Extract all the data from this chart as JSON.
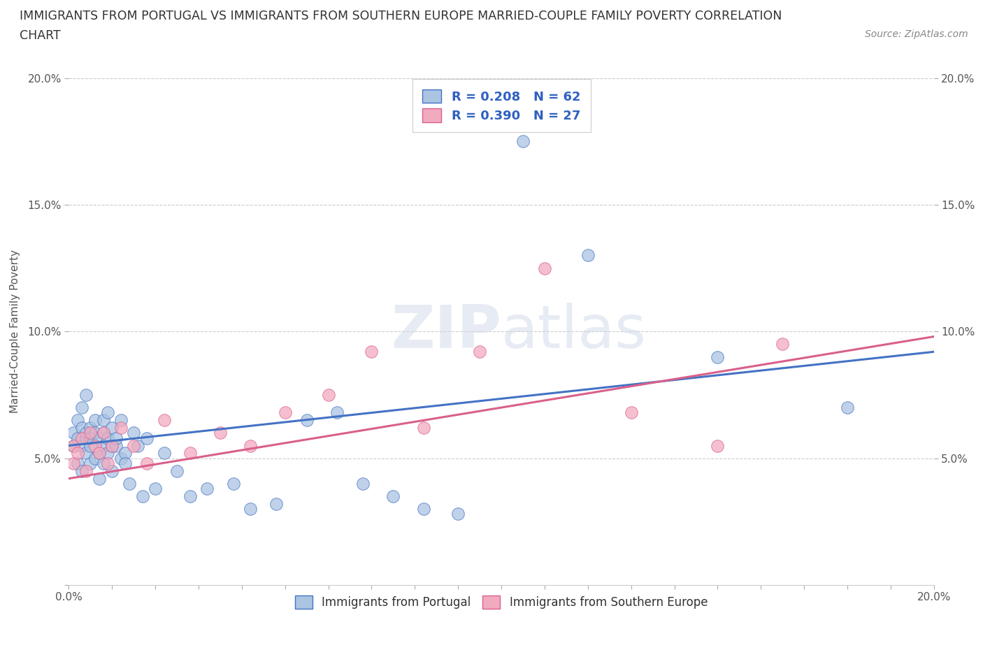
{
  "title_line1": "IMMIGRANTS FROM PORTUGAL VS IMMIGRANTS FROM SOUTHERN EUROPE MARRIED-COUPLE FAMILY POVERTY CORRELATION",
  "title_line2": "CHART",
  "source": "Source: ZipAtlas.com",
  "ylabel": "Married-Couple Family Poverty",
  "xlim": [
    0.0,
    0.2
  ],
  "ylim": [
    0.0,
    0.2
  ],
  "R1": 0.208,
  "N1": 62,
  "R2": 0.39,
  "N2": 27,
  "color_portugal": "#aac4e2",
  "color_southern": "#f2aabf",
  "color_line_portugal": "#4472c4",
  "color_line_southern": "#d9608a",
  "watermark_zip": "ZIP",
  "watermark_atlas": "atlas",
  "legend_label1": "Immigrants from Portugal",
  "legend_label2": "Immigrants from Southern Europe",
  "portugal_x": [
    0.001,
    0.001,
    0.002,
    0.002,
    0.002,
    0.003,
    0.003,
    0.003,
    0.003,
    0.004,
    0.004,
    0.004,
    0.004,
    0.005,
    0.005,
    0.005,
    0.005,
    0.006,
    0.006,
    0.006,
    0.007,
    0.007,
    0.007,
    0.008,
    0.008,
    0.008,
    0.008,
    0.009,
    0.009,
    0.009,
    0.01,
    0.01,
    0.01,
    0.011,
    0.011,
    0.012,
    0.012,
    0.013,
    0.013,
    0.014,
    0.015,
    0.016,
    0.017,
    0.018,
    0.02,
    0.022,
    0.025,
    0.028,
    0.032,
    0.038,
    0.042,
    0.048,
    0.055,
    0.062,
    0.068,
    0.075,
    0.082,
    0.09,
    0.105,
    0.12,
    0.15,
    0.18
  ],
  "portugal_y": [
    0.06,
    0.055,
    0.058,
    0.065,
    0.048,
    0.062,
    0.055,
    0.07,
    0.045,
    0.058,
    0.06,
    0.052,
    0.075,
    0.055,
    0.062,
    0.048,
    0.058,
    0.06,
    0.05,
    0.065,
    0.058,
    0.052,
    0.042,
    0.065,
    0.055,
    0.06,
    0.048,
    0.052,
    0.058,
    0.068,
    0.055,
    0.062,
    0.045,
    0.055,
    0.058,
    0.05,
    0.065,
    0.052,
    0.048,
    0.04,
    0.06,
    0.055,
    0.035,
    0.058,
    0.038,
    0.052,
    0.045,
    0.035,
    0.038,
    0.04,
    0.03,
    0.032,
    0.065,
    0.068,
    0.04,
    0.035,
    0.03,
    0.028,
    0.175,
    0.13,
    0.09,
    0.07
  ],
  "southern_x": [
    0.001,
    0.001,
    0.002,
    0.003,
    0.004,
    0.005,
    0.006,
    0.007,
    0.008,
    0.009,
    0.01,
    0.012,
    0.015,
    0.018,
    0.022,
    0.028,
    0.035,
    0.042,
    0.05,
    0.06,
    0.07,
    0.082,
    0.095,
    0.11,
    0.13,
    0.15,
    0.165
  ],
  "southern_y": [
    0.055,
    0.048,
    0.052,
    0.058,
    0.045,
    0.06,
    0.055,
    0.052,
    0.06,
    0.048,
    0.055,
    0.062,
    0.055,
    0.048,
    0.065,
    0.052,
    0.06,
    0.055,
    0.068,
    0.075,
    0.092,
    0.062,
    0.092,
    0.125,
    0.068,
    0.055,
    0.095
  ],
  "line1_x0": 0.0,
  "line1_y0": 0.055,
  "line1_x1": 0.2,
  "line1_y1": 0.092,
  "line2_x0": 0.0,
  "line2_y0": 0.042,
  "line2_x1": 0.2,
  "line2_y1": 0.098
}
